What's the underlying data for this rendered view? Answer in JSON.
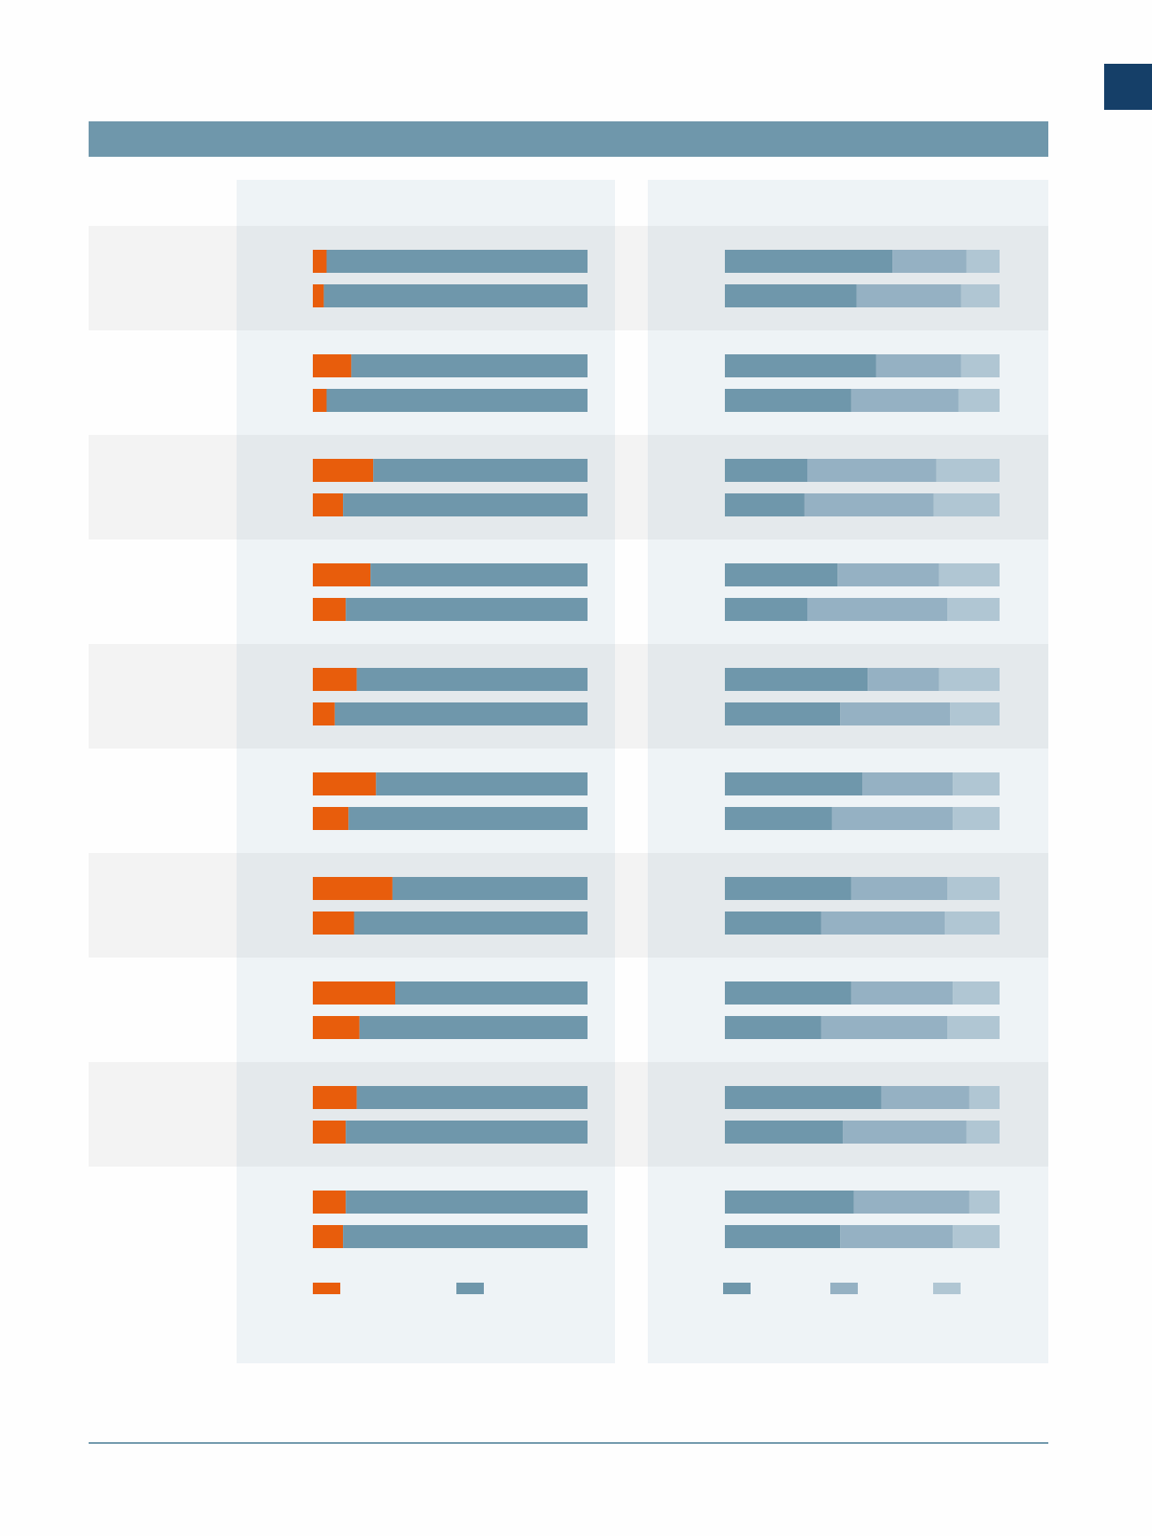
{
  "colors": {
    "corner_tab": "#153f68",
    "header_band": "#6f97ab",
    "left_share": "#e85d0c",
    "left_rest": "#6f97ab",
    "right_seg1": "#6f97ab",
    "right_seg2": "#95b1c3",
    "right_seg3": "#b0c6d3"
  },
  "chart_data": [
    {
      "type": "bar",
      "orientation": "horizontal",
      "stacked": true,
      "normalized": true,
      "ylim": [
        0,
        100
      ],
      "groups": 10,
      "bars_per_group": 2,
      "series": [
        {
          "values": [
            5,
            4,
            14,
            5,
            22,
            11,
            21,
            12,
            16,
            8,
            23,
            13,
            29,
            15,
            30,
            17,
            16,
            12,
            12,
            11
          ]
        },
        {
          "values": [
            95,
            96,
            86,
            95,
            78,
            89,
            79,
            88,
            84,
            92,
            77,
            87,
            71,
            85,
            70,
            83,
            84,
            88,
            88,
            89
          ]
        }
      ]
    },
    {
      "type": "bar",
      "orientation": "horizontal",
      "stacked": true,
      "normalized": true,
      "ylim": [
        0,
        100
      ],
      "groups": 10,
      "bars_per_group": 2,
      "series": [
        {
          "values": [
            61,
            48,
            55,
            46,
            30,
            29,
            41,
            30,
            52,
            42,
            50,
            39,
            46,
            35,
            46,
            35,
            57,
            43,
            47,
            42
          ]
        },
        {
          "values": [
            27,
            38,
            31,
            39,
            47,
            47,
            37,
            51,
            26,
            40,
            33,
            44,
            35,
            45,
            37,
            46,
            32,
            45,
            42,
            41
          ]
        },
        {
          "values": [
            12,
            14,
            14,
            15,
            23,
            24,
            22,
            19,
            22,
            18,
            17,
            17,
            19,
            20,
            17,
            19,
            11,
            12,
            11,
            17
          ]
        }
      ]
    }
  ]
}
